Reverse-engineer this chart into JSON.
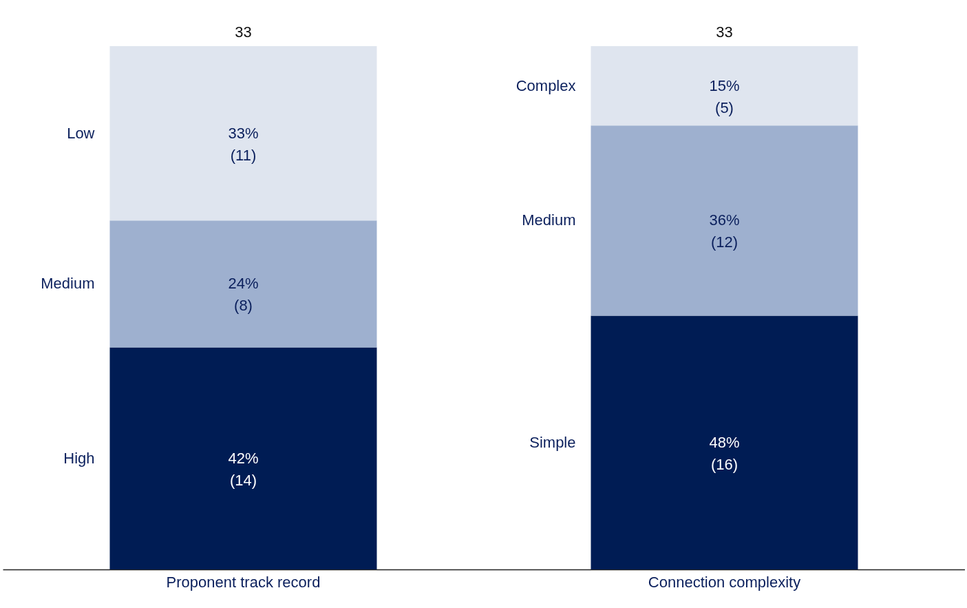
{
  "chart_data": {
    "type": "bar",
    "stacked": true,
    "tick_labels": "x",
    "categories": [
      "Proponent track record",
      "Connection complexity"
    ],
    "totals": [
      "33",
      "33"
    ],
    "series": [
      {
        "color": "#001c54",
        "values": [
          14,
          16
        ],
        "value_labels": [
          "42% (14)",
          "48% (16)"
        ]
      },
      {
        "color": "#9eb0cf",
        "values": [
          8,
          12
        ],
        "value_labels": [
          "24% (8)",
          "36% (12)"
        ]
      },
      {
        "color": "#dfe5ef",
        "values": [
          11,
          5
        ],
        "value_labels": [
          "33% (11)",
          "15% (5)"
        ]
      }
    ],
    "annotations": [
      "High",
      "Medium",
      "Low",
      "Simple",
      "Medium",
      "Complex"
    ]
  }
}
